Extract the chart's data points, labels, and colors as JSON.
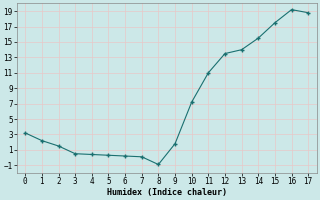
{
  "x": [
    0,
    1,
    2,
    3,
    4,
    5,
    6,
    7,
    8,
    9,
    10,
    11,
    12,
    13,
    14,
    15,
    16,
    17
  ],
  "y": [
    3.2,
    2.2,
    1.5,
    0.5,
    0.4,
    0.3,
    0.2,
    0.1,
    -0.9,
    1.8,
    7.2,
    11.0,
    13.5,
    14.0,
    15.5,
    17.5,
    19.2,
    18.8
  ],
  "xlabel": "Humidex (Indice chaleur)",
  "xlim": [
    -0.5,
    17.5
  ],
  "ylim": [
    -2,
    20
  ],
  "yticks": [
    -1,
    1,
    3,
    5,
    7,
    9,
    11,
    13,
    15,
    17,
    19
  ],
  "xticks": [
    0,
    1,
    2,
    3,
    4,
    5,
    6,
    7,
    8,
    9,
    10,
    11,
    12,
    13,
    14,
    15,
    16,
    17
  ],
  "line_color": "#1a7070",
  "bg_color": "#cce8e8",
  "grid_color": "#e8c8c8",
  "spine_color": "#888888"
}
